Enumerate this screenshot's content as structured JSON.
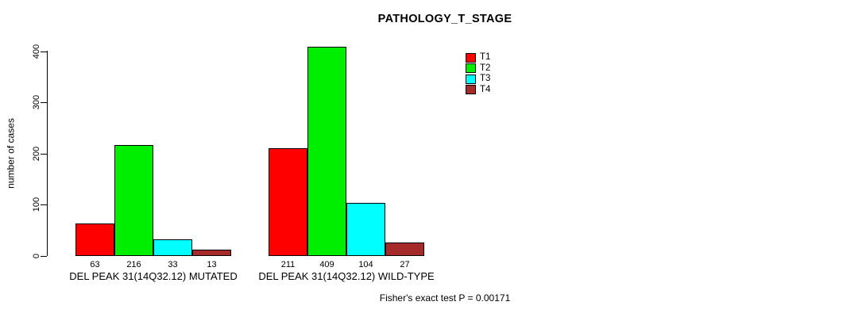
{
  "title": "PATHOLOGY_T_STAGE",
  "footnote": "Fisher's exact test P = 0.00171",
  "chart_data": {
    "type": "bar",
    "title": "PATHOLOGY_T_STAGE",
    "xlabel": "",
    "ylabel": "number of cases",
    "ylim": [
      0,
      400
    ],
    "yticks": [
      0,
      100,
      200,
      300,
      400
    ],
    "grid": false,
    "legend_position": "top-right",
    "series_names": [
      "T1",
      "T2",
      "T3",
      "T4"
    ],
    "colors": [
      "#FF0000",
      "#00EE00",
      "#00FFFF",
      "#A52A2A"
    ],
    "bar_border_color": "#000000",
    "groups": [
      {
        "label": "DEL PEAK 31(14Q32.12) MUTATED",
        "values": [
          63,
          216,
          33,
          13
        ]
      },
      {
        "label": "DEL PEAK 31(14Q32.12) WILD-TYPE",
        "values": [
          211,
          409,
          104,
          27
        ]
      }
    ],
    "footnote": "Fisher's exact test P = 0.00171"
  }
}
